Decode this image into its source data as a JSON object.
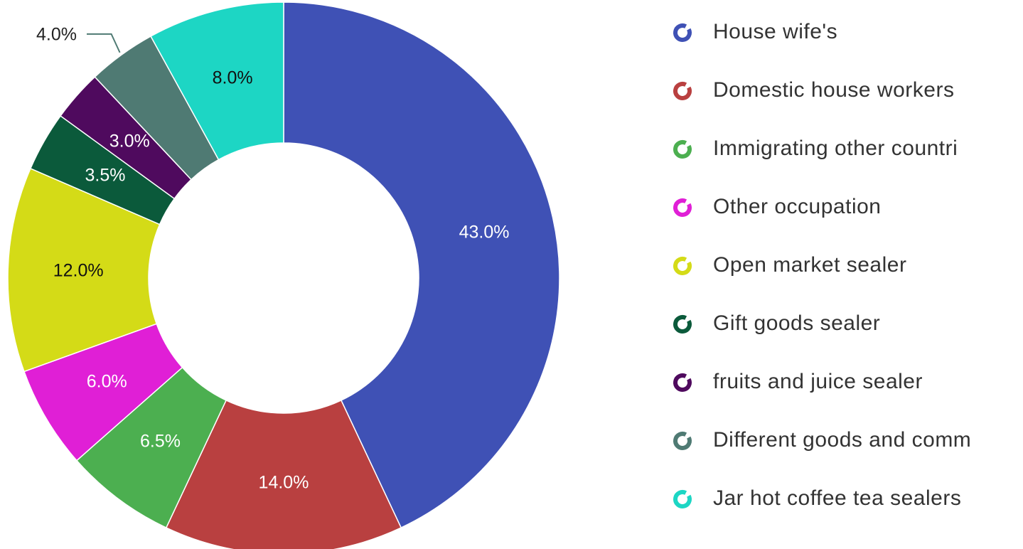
{
  "chart_data": {
    "type": "pie",
    "categories": [
      "House wife's",
      "Domestic house workers",
      "Immigrating other countri",
      "Other occupation",
      "Open market sealer",
      "Gift goods sealer",
      "fruits and juice sealer",
      "Different goods and comm",
      "Jar hot coffee tea sealers"
    ],
    "values": [
      43,
      14,
      6.5,
      6,
      12,
      3.5,
      3,
      4,
      8
    ],
    "value_labels": [
      "43.0%",
      "14.0%",
      "6.5%",
      "6.0%",
      "12.0%",
      "3.5%",
      "3.0%",
      "4.0%",
      "8.0%"
    ],
    "colors": [
      "#3f51b5",
      "#b94040",
      "#4caf50",
      "#e01fd6",
      "#d4db17",
      "#0b5a3b",
      "#4f0a5e",
      "#4f7a73",
      "#1dd6c4"
    ],
    "legend": "right"
  }
}
